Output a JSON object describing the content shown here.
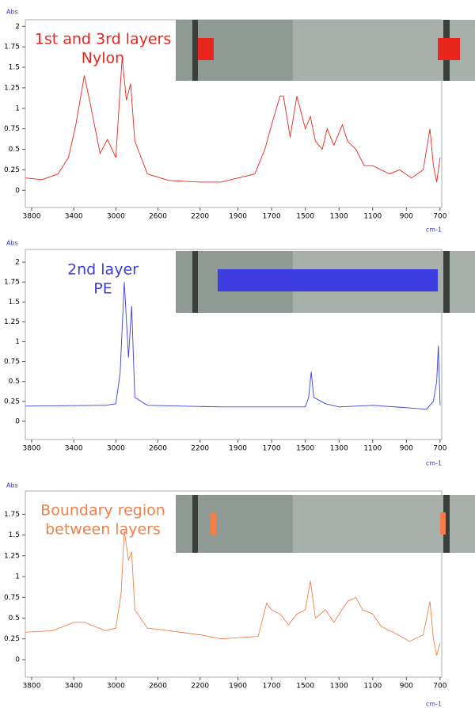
{
  "chart_data": [
    {
      "type": "line",
      "y_label": "Abs",
      "x_label": "cm-1",
      "annotation": [
        "1st and 3rd layers",
        "Nylon"
      ],
      "color": "#e8261e",
      "xlim": [
        3860,
        690
      ],
      "xbreak": 2000,
      "ylim": [
        -0.21,
        2.08
      ],
      "xticks": [
        3800,
        3400,
        3000,
        2600,
        2200,
        1900,
        1700,
        1500,
        1300,
        1100,
        900,
        700
      ],
      "yticks": [
        0,
        0.25,
        0.5,
        0.75,
        1,
        1.25,
        1.5,
        1.75,
        2
      ],
      "x": [
        3860,
        3700,
        3550,
        3450,
        3380,
        3300,
        3250,
        3150,
        3080,
        3000,
        2940,
        2900,
        2860,
        2820,
        2700,
        2500,
        2200,
        2000,
        1800,
        1740,
        1700,
        1650,
        1630,
        1590,
        1550,
        1500,
        1470,
        1440,
        1400,
        1370,
        1330,
        1280,
        1250,
        1200,
        1150,
        1100,
        1000,
        940,
        870,
        800,
        760,
        740,
        720,
        700
      ],
      "values": [
        0.15,
        0.13,
        0.2,
        0.4,
        0.8,
        1.4,
        1.1,
        0.45,
        0.62,
        0.4,
        1.62,
        1.1,
        1.3,
        0.6,
        0.2,
        0.12,
        0.1,
        0.1,
        0.2,
        0.5,
        0.8,
        1.15,
        1.15,
        0.65,
        1.15,
        0.75,
        0.9,
        0.6,
        0.5,
        0.75,
        0.55,
        0.8,
        0.6,
        0.5,
        0.3,
        0.3,
        0.2,
        0.25,
        0.15,
        0.25,
        0.75,
        0.3,
        0.1,
        0.4
      ]
    },
    {
      "type": "line",
      "y_label": "Abs",
      "x_label": "cm-1",
      "annotation": [
        "2nd layer",
        "PE"
      ],
      "color": "#3c3ce0",
      "xlim": [
        3860,
        690
      ],
      "xbreak": 2000,
      "ylim": [
        -0.23,
        2.16
      ],
      "xticks": [
        3800,
        3400,
        3000,
        2600,
        2200,
        1900,
        1700,
        1500,
        1300,
        1100,
        900,
        700
      ],
      "yticks": [
        0,
        0.25,
        0.5,
        0.75,
        1,
        1.25,
        1.5,
        1.75,
        2
      ],
      "x": [
        3860,
        3100,
        3000,
        2960,
        2920,
        2880,
        2850,
        2820,
        2700,
        2000,
        1500,
        1480,
        1465,
        1450,
        1380,
        1300,
        1100,
        900,
        780,
        740,
        720,
        710,
        700
      ],
      "values": [
        0.19,
        0.2,
        0.22,
        0.6,
        1.75,
        0.8,
        1.45,
        0.3,
        0.2,
        0.18,
        0.18,
        0.3,
        0.62,
        0.3,
        0.22,
        0.18,
        0.2,
        0.17,
        0.15,
        0.25,
        0.5,
        0.95,
        0.2
      ]
    },
    {
      "type": "line",
      "y_label": "Abs",
      "x_label": "cm-1",
      "annotation": [
        "Boundary region",
        "between layers"
      ],
      "color": "#f08048",
      "xlim": [
        3860,
        690
      ],
      "xbreak": 2000,
      "ylim": [
        -0.21,
        2.03
      ],
      "xticks": [
        3800,
        3400,
        3000,
        2600,
        2200,
        1900,
        1700,
        1500,
        1300,
        1100,
        900,
        700
      ],
      "yticks": [
        0,
        0.25,
        0.5,
        0.75,
        1,
        1.25,
        1.5,
        1.75
      ],
      "x": [
        3860,
        3600,
        3400,
        3300,
        3100,
        3000,
        2950,
        2920,
        2880,
        2850,
        2820,
        2700,
        2200,
        2000,
        1780,
        1730,
        1700,
        1650,
        1600,
        1550,
        1500,
        1470,
        1440,
        1380,
        1330,
        1250,
        1200,
        1160,
        1100,
        1050,
        950,
        880,
        800,
        760,
        740,
        720,
        700
      ],
      "values": [
        0.33,
        0.35,
        0.45,
        0.45,
        0.35,
        0.38,
        0.8,
        1.55,
        1.2,
        1.3,
        0.6,
        0.38,
        0.3,
        0.25,
        0.28,
        0.68,
        0.6,
        0.55,
        0.42,
        0.55,
        0.6,
        0.95,
        0.5,
        0.6,
        0.45,
        0.7,
        0.75,
        0.6,
        0.55,
        0.4,
        0.3,
        0.22,
        0.3,
        0.7,
        0.25,
        0.05,
        0.2
      ]
    }
  ]
}
